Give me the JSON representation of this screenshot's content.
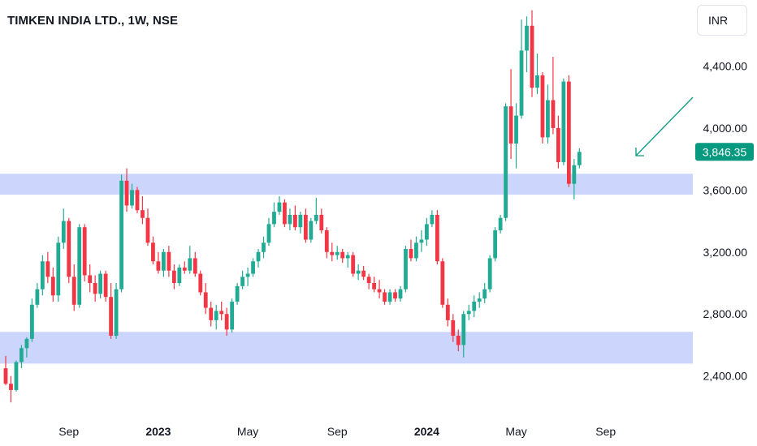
{
  "header": {
    "title": "TIMKEN INDIA LTD., 1W, NSE",
    "currency": "INR"
  },
  "colors": {
    "up": "#22ab94",
    "down": "#f23645",
    "zone": "#c3cffb",
    "arrow": "#089981",
    "badge": "#089981"
  },
  "chart_data": {
    "type": "candlestick",
    "timeframe": "1W",
    "ylim": [
      2210,
      4800
    ],
    "y_ticks": [
      2400,
      2800,
      3200,
      3600,
      4000,
      4400
    ],
    "y_tick_labels": [
      "2,400.00",
      "2,800.00",
      "3,200.00",
      "3,600.00",
      "4,000.00",
      "4,400.00"
    ],
    "x_ticks": [
      {
        "label": "Sep",
        "bar": 12
      },
      {
        "label": "2023",
        "bar": 29
      },
      {
        "label": "May",
        "bar": 46
      },
      {
        "label": "Sep",
        "bar": 63
      },
      {
        "label": "2024",
        "bar": 80
      },
      {
        "label": "May",
        "bar": 97
      },
      {
        "label": "Sep",
        "bar": 114
      }
    ],
    "last_price": 3846.35,
    "last_price_label": "3,846.35",
    "zones": [
      {
        "from": 3570,
        "to": 3705
      },
      {
        "from": 2480,
        "to": 2685
      }
    ],
    "candles": [
      [
        2450,
        2530,
        2340,
        2350
      ],
      [
        2350,
        2400,
        2230,
        2310
      ],
      [
        2310,
        2500,
        2300,
        2490
      ],
      [
        2490,
        2600,
        2450,
        2580
      ],
      [
        2580,
        2650,
        2520,
        2640
      ],
      [
        2640,
        2900,
        2620,
        2860
      ],
      [
        2860,
        3000,
        2840,
        2960
      ],
      [
        2960,
        3180,
        2920,
        3140
      ],
      [
        3140,
        3200,
        3000,
        3040
      ],
      [
        3040,
        3100,
        2880,
        2920
      ],
      [
        2920,
        3300,
        2880,
        3260
      ],
      [
        3260,
        3480,
        3220,
        3400
      ],
      [
        3400,
        3420,
        3000,
        3040
      ],
      [
        3040,
        3120,
        2820,
        2860
      ],
      [
        2860,
        3380,
        2840,
        3360
      ],
      [
        3360,
        3380,
        3010,
        3050
      ],
      [
        3050,
        3120,
        2940,
        3000
      ],
      [
        3000,
        3050,
        2880,
        2930
      ],
      [
        2930,
        3080,
        2900,
        3060
      ],
      [
        3060,
        3080,
        2880,
        2910
      ],
      [
        2910,
        3000,
        2640,
        2660
      ],
      [
        2660,
        3000,
        2640,
        2960
      ],
      [
        2960,
        3700,
        2940,
        3660
      ],
      [
        3660,
        3740,
        3460,
        3500
      ],
      [
        3500,
        3640,
        3480,
        3600
      ],
      [
        3600,
        3620,
        3450,
        3470
      ],
      [
        3470,
        3560,
        3380,
        3420
      ],
      [
        3420,
        3480,
        3240,
        3260
      ],
      [
        3260,
        3300,
        3120,
        3140
      ],
      [
        3140,
        3200,
        3060,
        3080
      ],
      [
        3080,
        3220,
        3040,
        3200
      ],
      [
        3200,
        3240,
        3040,
        3080
      ],
      [
        3080,
        3120,
        2960,
        3000
      ],
      [
        3000,
        3120,
        2980,
        3100
      ],
      [
        3100,
        3140,
        3060,
        3080
      ],
      [
        3080,
        3240,
        3060,
        3160
      ],
      [
        3160,
        3200,
        3040,
        3060
      ],
      [
        3060,
        3080,
        2920,
        2940
      ],
      [
        2940,
        3000,
        2800,
        2840
      ],
      [
        2840,
        2880,
        2720,
        2760
      ],
      [
        2760,
        2860,
        2700,
        2820
      ],
      [
        2820,
        2880,
        2760,
        2800
      ],
      [
        2800,
        2840,
        2660,
        2700
      ],
      [
        2700,
        2900,
        2680,
        2880
      ],
      [
        2880,
        3000,
        2860,
        2980
      ],
      [
        2980,
        3080,
        2960,
        3040
      ],
      [
        3040,
        3100,
        2980,
        3060
      ],
      [
        3060,
        3160,
        3040,
        3140
      ],
      [
        3140,
        3220,
        3100,
        3200
      ],
      [
        3200,
        3300,
        3160,
        3260
      ],
      [
        3260,
        3420,
        3240,
        3380
      ],
      [
        3380,
        3520,
        3360,
        3460
      ],
      [
        3460,
        3560,
        3440,
        3520
      ],
      [
        3520,
        3540,
        3360,
        3380
      ],
      [
        3380,
        3480,
        3340,
        3440
      ],
      [
        3440,
        3500,
        3340,
        3360
      ],
      [
        3360,
        3460,
        3320,
        3440
      ],
      [
        3440,
        3480,
        3260,
        3280
      ],
      [
        3280,
        3420,
        3260,
        3400
      ],
      [
        3400,
        3550,
        3380,
        3440
      ],
      [
        3440,
        3480,
        3320,
        3340
      ],
      [
        3340,
        3360,
        3160,
        3200
      ],
      [
        3200,
        3260,
        3140,
        3180
      ],
      [
        3180,
        3240,
        3150,
        3200
      ],
      [
        3200,
        3220,
        3130,
        3160
      ],
      [
        3160,
        3200,
        3100,
        3180
      ],
      [
        3180,
        3200,
        3040,
        3060
      ],
      [
        3060,
        3120,
        3020,
        3080
      ],
      [
        3080,
        3110,
        3020,
        3040
      ],
      [
        3040,
        3060,
        2960,
        3000
      ],
      [
        3000,
        3040,
        2940,
        2960
      ],
      [
        2960,
        3020,
        2900,
        2940
      ],
      [
        2940,
        2960,
        2860,
        2880
      ],
      [
        2880,
        2960,
        2860,
        2940
      ],
      [
        2940,
        2960,
        2880,
        2900
      ],
      [
        2900,
        2980,
        2880,
        2960
      ],
      [
        2960,
        3240,
        2940,
        3220
      ],
      [
        3220,
        3280,
        3140,
        3160
      ],
      [
        3160,
        3300,
        3140,
        3260
      ],
      [
        3260,
        3340,
        3200,
        3280
      ],
      [
        3280,
        3420,
        3240,
        3380
      ],
      [
        3380,
        3470,
        3360,
        3440
      ],
      [
        3440,
        3470,
        3120,
        3140
      ],
      [
        3140,
        3160,
        2840,
        2860
      ],
      [
        2860,
        2900,
        2720,
        2760
      ],
      [
        2760,
        2800,
        2620,
        2660
      ],
      [
        2660,
        2700,
        2560,
        2600
      ],
      [
        2600,
        2820,
        2520,
        2800
      ],
      [
        2800,
        2860,
        2760,
        2820
      ],
      [
        2820,
        2920,
        2780,
        2880
      ],
      [
        2880,
        2940,
        2840,
        2900
      ],
      [
        2900,
        3000,
        2870,
        2960
      ],
      [
        2960,
        3180,
        2940,
        3160
      ],
      [
        3160,
        3360,
        3140,
        3340
      ],
      [
        3340,
        3440,
        3320,
        3420
      ],
      [
        3420,
        4160,
        3400,
        4140
      ],
      [
        4140,
        4380,
        3800,
        3900
      ],
      [
        3900,
        4160,
        3740,
        4080
      ],
      [
        4080,
        4700,
        4060,
        4500
      ],
      [
        4500,
        4720,
        4360,
        4660
      ],
      [
        4660,
        4760,
        4200,
        4260
      ],
      [
        4260,
        4480,
        4220,
        4340
      ],
      [
        4340,
        4360,
        3900,
        3940
      ],
      [
        3940,
        4280,
        3900,
        4180
      ],
      [
        4180,
        4460,
        3960,
        4000
      ],
      [
        4000,
        4080,
        3740,
        3780
      ],
      [
        3780,
        4320,
        3760,
        4300
      ],
      [
        4300,
        4340,
        3620,
        3640
      ],
      [
        3640,
        3800,
        3540,
        3760
      ],
      [
        3760,
        3870,
        3740,
        3846.35
      ]
    ]
  }
}
